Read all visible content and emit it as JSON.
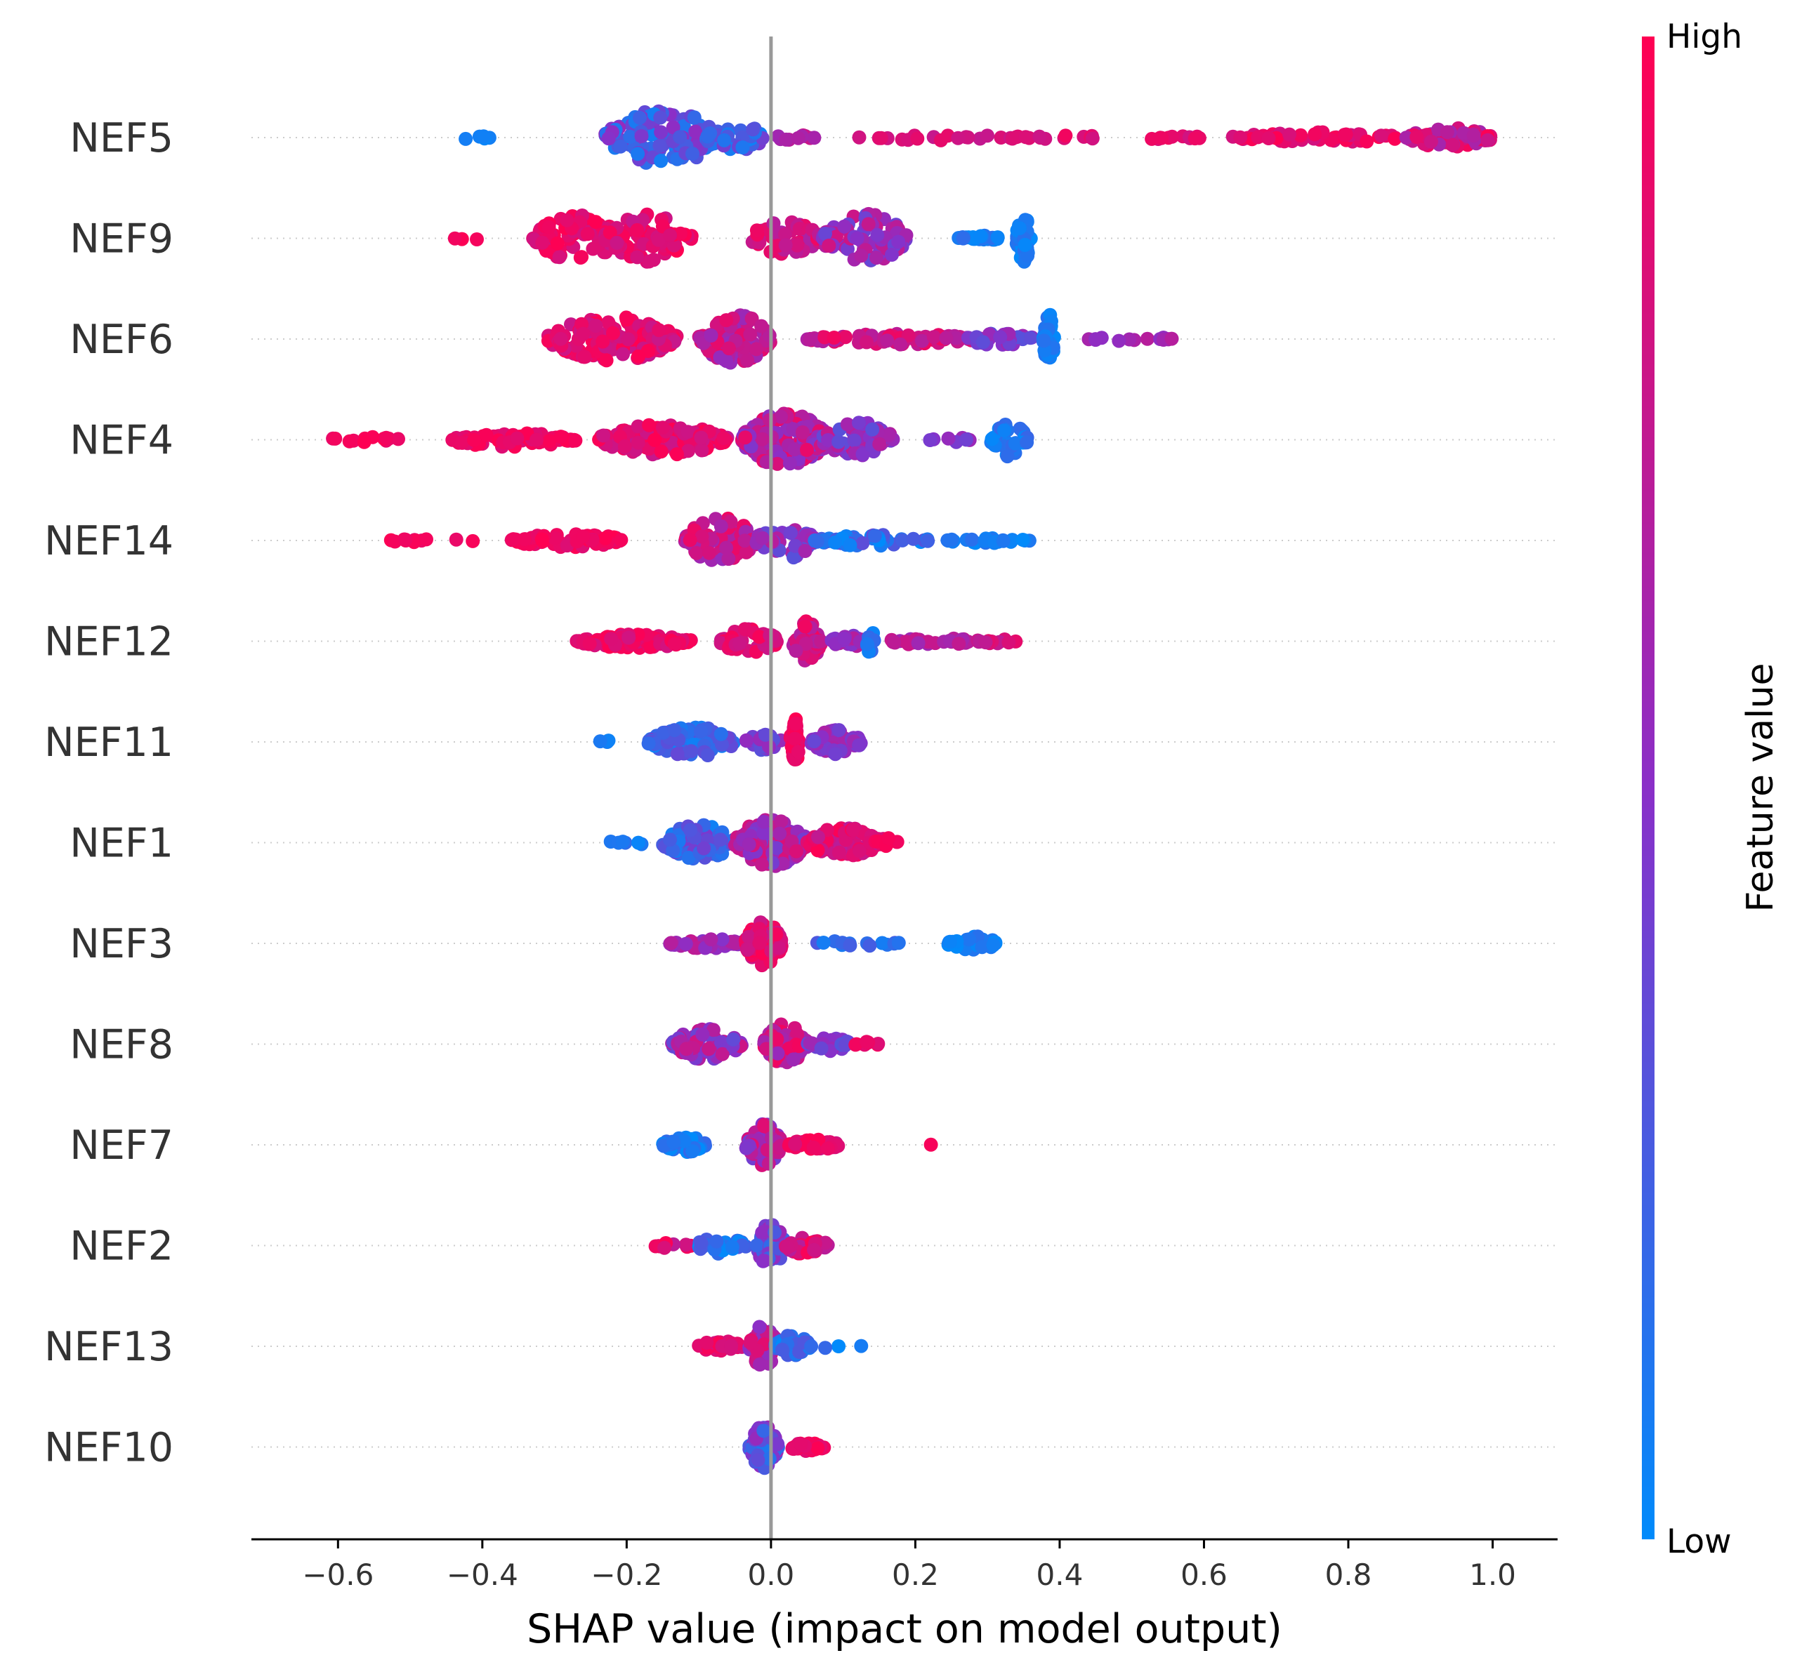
{
  "chart_data": {
    "type": "scatter",
    "subtype": "shap-beeswarm",
    "title": "",
    "xlabel": "SHAP value (impact on model output)",
    "ylabel": "",
    "xlim": [
      -0.72,
      1.09
    ],
    "xticks": [
      -0.6,
      -0.4,
      -0.2,
      0.0,
      0.2,
      0.4,
      0.6,
      0.8,
      1.0
    ],
    "xtick_labels": [
      "−0.6",
      "−0.4",
      "−0.2",
      "0.0",
      "0.2",
      "0.4",
      "0.6",
      "0.8",
      "1.0"
    ],
    "zero_line": 0.0,
    "colorbar": {
      "title": "Feature value",
      "high_label": "High",
      "low_label": "Low",
      "high_color": "#ff0052",
      "mid_color": "#8a2fc8",
      "low_color": "#008bfb"
    },
    "features": [
      {
        "name": "NEF5",
        "clusters": [
          {
            "x": -0.41,
            "spread": 0.02,
            "n": 5,
            "h": 4,
            "c": [
              0.0,
              0.1
            ]
          },
          {
            "x": -0.15,
            "spread": 0.08,
            "n": 140,
            "h": 40,
            "c": [
              0.05,
              0.55
            ]
          },
          {
            "x": -0.05,
            "spread": 0.04,
            "n": 35,
            "h": 22,
            "c": [
              0.05,
              0.45
            ]
          },
          {
            "x": 0.03,
            "spread": 0.03,
            "n": 10,
            "h": 4,
            "c": [
              0.55,
              0.8
            ]
          },
          {
            "x": 0.24,
            "spread": 0.12,
            "n": 22,
            "h": 4,
            "c": [
              0.7,
              0.9
            ]
          },
          {
            "x": 0.48,
            "spread": 0.13,
            "n": 22,
            "h": 4,
            "c": [
              0.75,
              0.95
            ]
          },
          {
            "x": 0.76,
            "spread": 0.12,
            "n": 50,
            "h": 8,
            "c": [
              0.8,
              1.0
            ]
          },
          {
            "x": 0.94,
            "spread": 0.06,
            "n": 80,
            "h": 14,
            "c": [
              0.6,
              1.0
            ]
          }
        ]
      },
      {
        "name": "NEF9",
        "clusters": [
          {
            "x": -0.42,
            "spread": 0.02,
            "n": 3,
            "h": 3,
            "c": [
              0.9,
              1.0
            ]
          },
          {
            "x": -0.27,
            "spread": 0.06,
            "n": 80,
            "h": 34,
            "c": [
              0.8,
              1.0
            ]
          },
          {
            "x": -0.17,
            "spread": 0.06,
            "n": 70,
            "h": 34,
            "c": [
              0.75,
              1.0
            ]
          },
          {
            "x": 0.02,
            "spread": 0.05,
            "n": 50,
            "h": 24,
            "c": [
              0.65,
              0.95
            ]
          },
          {
            "x": 0.13,
            "spread": 0.06,
            "n": 80,
            "h": 36,
            "c": [
              0.35,
              0.8
            ]
          },
          {
            "x": 0.29,
            "spread": 0.03,
            "n": 25,
            "h": 4,
            "c": [
              0.0,
              0.2
            ]
          },
          {
            "x": 0.35,
            "spread": 0.01,
            "n": 40,
            "h": 34,
            "c": [
              0.0,
              0.15
            ]
          }
        ]
      },
      {
        "name": "NEF6",
        "clusters": [
          {
            "x": -0.22,
            "spread": 0.09,
            "n": 150,
            "h": 32,
            "c": [
              0.75,
              1.0
            ]
          },
          {
            "x": -0.05,
            "spread": 0.05,
            "n": 100,
            "h": 36,
            "c": [
              0.55,
              0.9
            ]
          },
          {
            "x": 0.17,
            "spread": 0.12,
            "n": 70,
            "h": 8,
            "c": [
              0.65,
              0.95
            ]
          },
          {
            "x": 0.32,
            "spread": 0.05,
            "n": 25,
            "h": 10,
            "c": [
              0.3,
              0.6
            ]
          },
          {
            "x": 0.385,
            "spread": 0.008,
            "n": 40,
            "h": 36,
            "c": [
              0.0,
              0.15
            ]
          },
          {
            "x": 0.5,
            "spread": 0.06,
            "n": 14,
            "h": 4,
            "c": [
              0.45,
              0.7
            ]
          }
        ]
      },
      {
        "name": "NEF4",
        "clusters": [
          {
            "x": -0.56,
            "spread": 0.06,
            "n": 12,
            "h": 4,
            "c": [
              0.9,
              1.0
            ]
          },
          {
            "x": -0.36,
            "spread": 0.09,
            "n": 70,
            "h": 10,
            "c": [
              0.85,
              1.0
            ]
          },
          {
            "x": -0.15,
            "spread": 0.09,
            "n": 120,
            "h": 22,
            "c": [
              0.75,
              1.0
            ]
          },
          {
            "x": 0.02,
            "spread": 0.06,
            "n": 170,
            "h": 40,
            "c": [
              0.45,
              0.95
            ]
          },
          {
            "x": 0.12,
            "spread": 0.05,
            "n": 60,
            "h": 26,
            "c": [
              0.3,
              0.75
            ]
          },
          {
            "x": 0.25,
            "spread": 0.03,
            "n": 8,
            "h": 4,
            "c": [
              0.4,
              0.6
            ]
          },
          {
            "x": 0.33,
            "spread": 0.025,
            "n": 40,
            "h": 26,
            "c": [
              0.0,
              0.2
            ]
          }
        ]
      },
      {
        "name": "NEF14",
        "clusters": [
          {
            "x": -0.47,
            "spread": 0.06,
            "n": 12,
            "h": 4,
            "c": [
              0.9,
              1.0
            ]
          },
          {
            "x": -0.28,
            "spread": 0.08,
            "n": 60,
            "h": 10,
            "c": [
              0.85,
              1.0
            ]
          },
          {
            "x": -0.07,
            "spread": 0.05,
            "n": 90,
            "h": 34,
            "c": [
              0.55,
              0.95
            ]
          },
          {
            "x": 0.02,
            "spread": 0.04,
            "n": 50,
            "h": 26,
            "c": [
              0.3,
              0.7
            ]
          },
          {
            "x": 0.14,
            "spread": 0.08,
            "n": 50,
            "h": 8,
            "c": [
              0.0,
              0.35
            ]
          },
          {
            "x": 0.3,
            "spread": 0.06,
            "n": 25,
            "h": 4,
            "c": [
              0.0,
              0.15
            ]
          }
        ]
      },
      {
        "name": "NEF12",
        "clusters": [
          {
            "x": -0.19,
            "spread": 0.08,
            "n": 100,
            "h": 10,
            "c": [
              0.8,
              1.0
            ]
          },
          {
            "x": -0.03,
            "spread": 0.04,
            "n": 60,
            "h": 18,
            "c": [
              0.75,
              1.0
            ]
          },
          {
            "x": 0.05,
            "spread": 0.02,
            "n": 40,
            "h": 30,
            "c": [
              0.65,
              0.95
            ]
          },
          {
            "x": 0.11,
            "spread": 0.03,
            "n": 25,
            "h": 8,
            "c": [
              0.45,
              0.7
            ]
          },
          {
            "x": 0.138,
            "spread": 0.005,
            "n": 14,
            "h": 22,
            "c": [
              0.0,
              0.2
            ]
          },
          {
            "x": 0.22,
            "spread": 0.06,
            "n": 30,
            "h": 6,
            "c": [
              0.55,
              0.8
            ]
          },
          {
            "x": 0.31,
            "spread": 0.03,
            "n": 12,
            "h": 4,
            "c": [
              0.7,
              0.9
            ]
          }
        ]
      },
      {
        "name": "NEF11",
        "clusters": [
          {
            "x": -0.23,
            "spread": 0.03,
            "n": 3,
            "h": 3,
            "c": [
              0.0,
              0.1
            ]
          },
          {
            "x": -0.11,
            "spread": 0.06,
            "n": 90,
            "h": 22,
            "c": [
              0.05,
              0.4
            ]
          },
          {
            "x": -0.01,
            "spread": 0.025,
            "n": 30,
            "h": 12,
            "c": [
              0.3,
              0.6
            ]
          },
          {
            "x": 0.033,
            "spread": 0.006,
            "n": 40,
            "h": 36,
            "c": [
              0.88,
              1.0
            ]
          },
          {
            "x": 0.09,
            "spread": 0.035,
            "n": 50,
            "h": 18,
            "c": [
              0.35,
              0.65
            ]
          }
        ]
      },
      {
        "name": "NEF1",
        "clusters": [
          {
            "x": -0.2,
            "spread": 0.03,
            "n": 6,
            "h": 4,
            "c": [
              0.0,
              0.2
            ]
          },
          {
            "x": -0.1,
            "spread": 0.05,
            "n": 80,
            "h": 26,
            "c": [
              0.05,
              0.45
            ]
          },
          {
            "x": 0.0,
            "spread": 0.05,
            "n": 120,
            "h": 34,
            "c": [
              0.4,
              0.85
            ]
          },
          {
            "x": 0.1,
            "spread": 0.05,
            "n": 70,
            "h": 22,
            "c": [
              0.7,
              1.0
            ]
          },
          {
            "x": 0.155,
            "spread": 0.02,
            "n": 12,
            "h": 8,
            "c": [
              0.8,
              1.0
            ]
          }
        ]
      },
      {
        "name": "NEF3",
        "clusters": [
          {
            "x": -0.09,
            "spread": 0.05,
            "n": 40,
            "h": 8,
            "c": [
              0.45,
              0.75
            ]
          },
          {
            "x": -0.01,
            "spread": 0.025,
            "n": 80,
            "h": 32,
            "c": [
              0.75,
              1.0
            ]
          },
          {
            "x": 0.12,
            "spread": 0.06,
            "n": 14,
            "h": 4,
            "c": [
              0.0,
              0.3
            ]
          },
          {
            "x": 0.28,
            "spread": 0.035,
            "n": 30,
            "h": 10,
            "c": [
              0.0,
              0.15
            ]
          }
        ]
      },
      {
        "name": "NEF8",
        "clusters": [
          {
            "x": -0.09,
            "spread": 0.05,
            "n": 70,
            "h": 22,
            "c": [
              0.35,
              0.8
            ]
          },
          {
            "x": 0.02,
            "spread": 0.03,
            "n": 80,
            "h": 30,
            "c": [
              0.55,
              0.95
            ]
          },
          {
            "x": 0.08,
            "spread": 0.03,
            "n": 25,
            "h": 10,
            "c": [
              0.3,
              0.6
            ]
          },
          {
            "x": 0.14,
            "spread": 0.025,
            "n": 8,
            "h": 4,
            "c": [
              0.85,
              1.0
            ]
          }
        ]
      },
      {
        "name": "NEF7",
        "clusters": [
          {
            "x": -0.12,
            "spread": 0.03,
            "n": 40,
            "h": 14,
            "c": [
              0.0,
              0.2
            ]
          },
          {
            "x": -0.01,
            "spread": 0.025,
            "n": 70,
            "h": 30,
            "c": [
              0.4,
              0.9
            ]
          },
          {
            "x": 0.06,
            "spread": 0.035,
            "n": 50,
            "h": 8,
            "c": [
              0.8,
              1.0
            ]
          },
          {
            "x": 0.22,
            "spread": 0.002,
            "n": 1,
            "h": 1,
            "c": [
              0.95,
              1.0
            ]
          }
        ]
      },
      {
        "name": "NEF2",
        "clusters": [
          {
            "x": -0.14,
            "spread": 0.03,
            "n": 10,
            "h": 4,
            "c": [
              0.7,
              1.0
            ]
          },
          {
            "x": -0.07,
            "spread": 0.035,
            "n": 40,
            "h": 12,
            "c": [
              0.0,
              0.3
            ]
          },
          {
            "x": 0.0,
            "spread": 0.02,
            "n": 60,
            "h": 32,
            "c": [
              0.1,
              0.6
            ]
          },
          {
            "x": 0.05,
            "spread": 0.03,
            "n": 40,
            "h": 14,
            "c": [
              0.65,
              1.0
            ]
          }
        ]
      },
      {
        "name": "NEF13",
        "clusters": [
          {
            "x": -0.07,
            "spread": 0.03,
            "n": 25,
            "h": 8,
            "c": [
              0.8,
              1.0
            ]
          },
          {
            "x": -0.01,
            "spread": 0.02,
            "n": 50,
            "h": 30,
            "c": [
              0.4,
              0.9
            ]
          },
          {
            "x": 0.03,
            "spread": 0.025,
            "n": 40,
            "h": 16,
            "c": [
              0.0,
              0.3
            ]
          },
          {
            "x": 0.09,
            "spread": 0.04,
            "n": 4,
            "h": 3,
            "c": [
              0.0,
              0.2
            ]
          }
        ]
      },
      {
        "name": "NEF10",
        "clusters": [
          {
            "x": -0.01,
            "spread": 0.02,
            "n": 60,
            "h": 30,
            "c": [
              0.0,
              0.6
            ]
          },
          {
            "x": 0.05,
            "spread": 0.025,
            "n": 40,
            "h": 6,
            "c": [
              0.85,
              1.0
            ]
          }
        ]
      }
    ]
  }
}
